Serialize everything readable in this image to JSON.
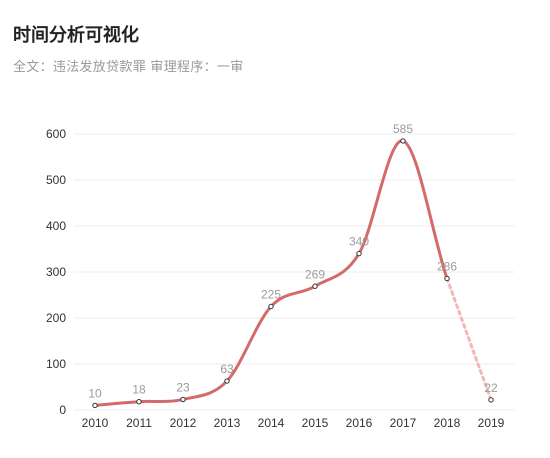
{
  "header": {
    "title": "时间分析可视化",
    "subtitle": "全文：违法发放贷款罪   审理程序：一审"
  },
  "colors": {
    "line": "#d46a6a",
    "projected_line": "#f2b8b8",
    "grid": "#eeeeee"
  },
  "chart_data": {
    "type": "line",
    "title": "",
    "xlabel": "",
    "ylabel": "",
    "categories": [
      "2010",
      "2011",
      "2012",
      "2013",
      "2014",
      "2015",
      "2016",
      "2017",
      "2018",
      "2019"
    ],
    "values": [
      10,
      18,
      23,
      63,
      225,
      269,
      340,
      585,
      286,
      22
    ],
    "ylim": [
      0,
      600
    ],
    "yticks": [
      0,
      100,
      200,
      300,
      400,
      500,
      600
    ],
    "grid": true,
    "dashed_last_segment": true
  }
}
